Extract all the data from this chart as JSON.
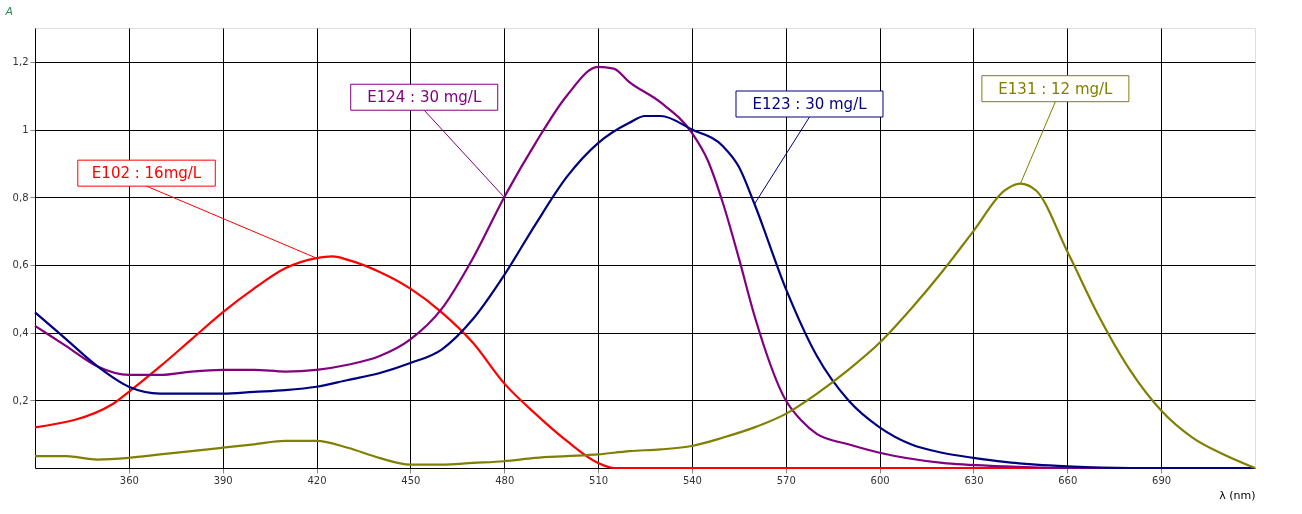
{
  "chart_data": {
    "type": "line",
    "xlabel": "λ (nm)",
    "ylabel": "A",
    "xlim": [
      330,
      720
    ],
    "ylim": [
      0,
      1.3
    ],
    "xticks": [
      360,
      390,
      420,
      450,
      480,
      510,
      540,
      570,
      600,
      630,
      660,
      690
    ],
    "yticks": [
      {
        "value": 0.2,
        "label": "0,2"
      },
      {
        "value": 0.4,
        "label": "0,4"
      },
      {
        "value": 0.6,
        "label": "0,6"
      },
      {
        "value": 0.8,
        "label": "0,8"
      },
      1,
      {
        "value": 1.2,
        "label": "1,2"
      }
    ],
    "grid": true,
    "marker": "none",
    "line_style": "solid",
    "series": [
      {
        "color": "#ff0000",
        "x": [
          330,
          355,
          360,
          370,
          380,
          390,
          400,
          410,
          420,
          425,
          430,
          440,
          450,
          460,
          470,
          480,
          490,
          500,
          510,
          515,
          540,
          720
        ],
        "values": [
          0.12,
          0.19,
          0.225,
          0.3,
          0.38,
          0.46,
          0.53,
          0.59,
          0.62,
          0.625,
          0.615,
          0.58,
          0.53,
          0.46,
          0.37,
          0.25,
          0.16,
          0.08,
          0.015,
          0,
          0,
          0
        ]
      },
      {
        "color": "#800080",
        "x": [
          330,
          340,
          350,
          360,
          370,
          380,
          390,
          400,
          410,
          420,
          430,
          440,
          450,
          460,
          470,
          480,
          490,
          500,
          510,
          515,
          520,
          530,
          540,
          545,
          550,
          555,
          560,
          570,
          575,
          580,
          590,
          600,
          620,
          640,
          660,
          720
        ],
        "values": [
          0.42,
          0.36,
          0.3,
          0.275,
          0.275,
          0.285,
          0.29,
          0.29,
          0.285,
          0.29,
          0.305,
          0.33,
          0.38,
          0.47,
          0.62,
          0.8,
          0.96,
          1.1,
          1.185,
          1.18,
          1.14,
          1.08,
          0.99,
          0.91,
          0.78,
          0.62,
          0.45,
          0.2,
          0.14,
          0.1,
          0.07,
          0.045,
          0.015,
          0.005,
          0,
          0
        ]
      },
      {
        "color": "#000080",
        "x": [
          330,
          340,
          350,
          360,
          370,
          380,
          390,
          400,
          410,
          420,
          430,
          440,
          450,
          460,
          470,
          480,
          490,
          500,
          510,
          520,
          525,
          530,
          540,
          550,
          555,
          560,
          570,
          580,
          590,
          600,
          610,
          620,
          630,
          640,
          650,
          660,
          680,
          720
        ],
        "values": [
          0.46,
          0.38,
          0.3,
          0.24,
          0.22,
          0.22,
          0.22,
          0.225,
          0.23,
          0.24,
          0.26,
          0.28,
          0.31,
          0.35,
          0.44,
          0.57,
          0.72,
          0.86,
          0.96,
          1.02,
          1.04,
          1.04,
          1.0,
          0.95,
          0.89,
          0.78,
          0.53,
          0.33,
          0.2,
          0.12,
          0.07,
          0.045,
          0.03,
          0.018,
          0.01,
          0.005,
          0,
          0
        ]
      },
      {
        "color": "#808000",
        "x": [
          330,
          340,
          350,
          360,
          370,
          380,
          390,
          400,
          410,
          420,
          430,
          440,
          450,
          460,
          470,
          480,
          490,
          500,
          510,
          520,
          530,
          540,
          550,
          560,
          570,
          580,
          590,
          600,
          610,
          620,
          630,
          640,
          645,
          650,
          660,
          670,
          680,
          690,
          700,
          710,
          720
        ],
        "values": [
          0.035,
          0.035,
          0.025,
          0.03,
          0.04,
          0.05,
          0.06,
          0.07,
          0.08,
          0.08,
          0.06,
          0.03,
          0.01,
          0.01,
          0.015,
          0.02,
          0.03,
          0.035,
          0.04,
          0.05,
          0.055,
          0.065,
          0.09,
          0.12,
          0.16,
          0.22,
          0.29,
          0.37,
          0.47,
          0.58,
          0.7,
          0.82,
          0.84,
          0.82,
          0.64,
          0.45,
          0.29,
          0.17,
          0.09,
          0.04,
          0
        ]
      }
    ],
    "annotations": [
      {
        "text": "E102 : 16mg/L",
        "x": 420,
        "y": 0.62
      },
      {
        "text": "E124 : 30 mg/L",
        "x": 480,
        "y": 0.8
      },
      {
        "text": "E123 : 30 mg/L",
        "x": 560,
        "y": 0.78
      },
      {
        "text": "E131 : 12 mg/L",
        "x": 645,
        "y": 0.84
      }
    ]
  }
}
